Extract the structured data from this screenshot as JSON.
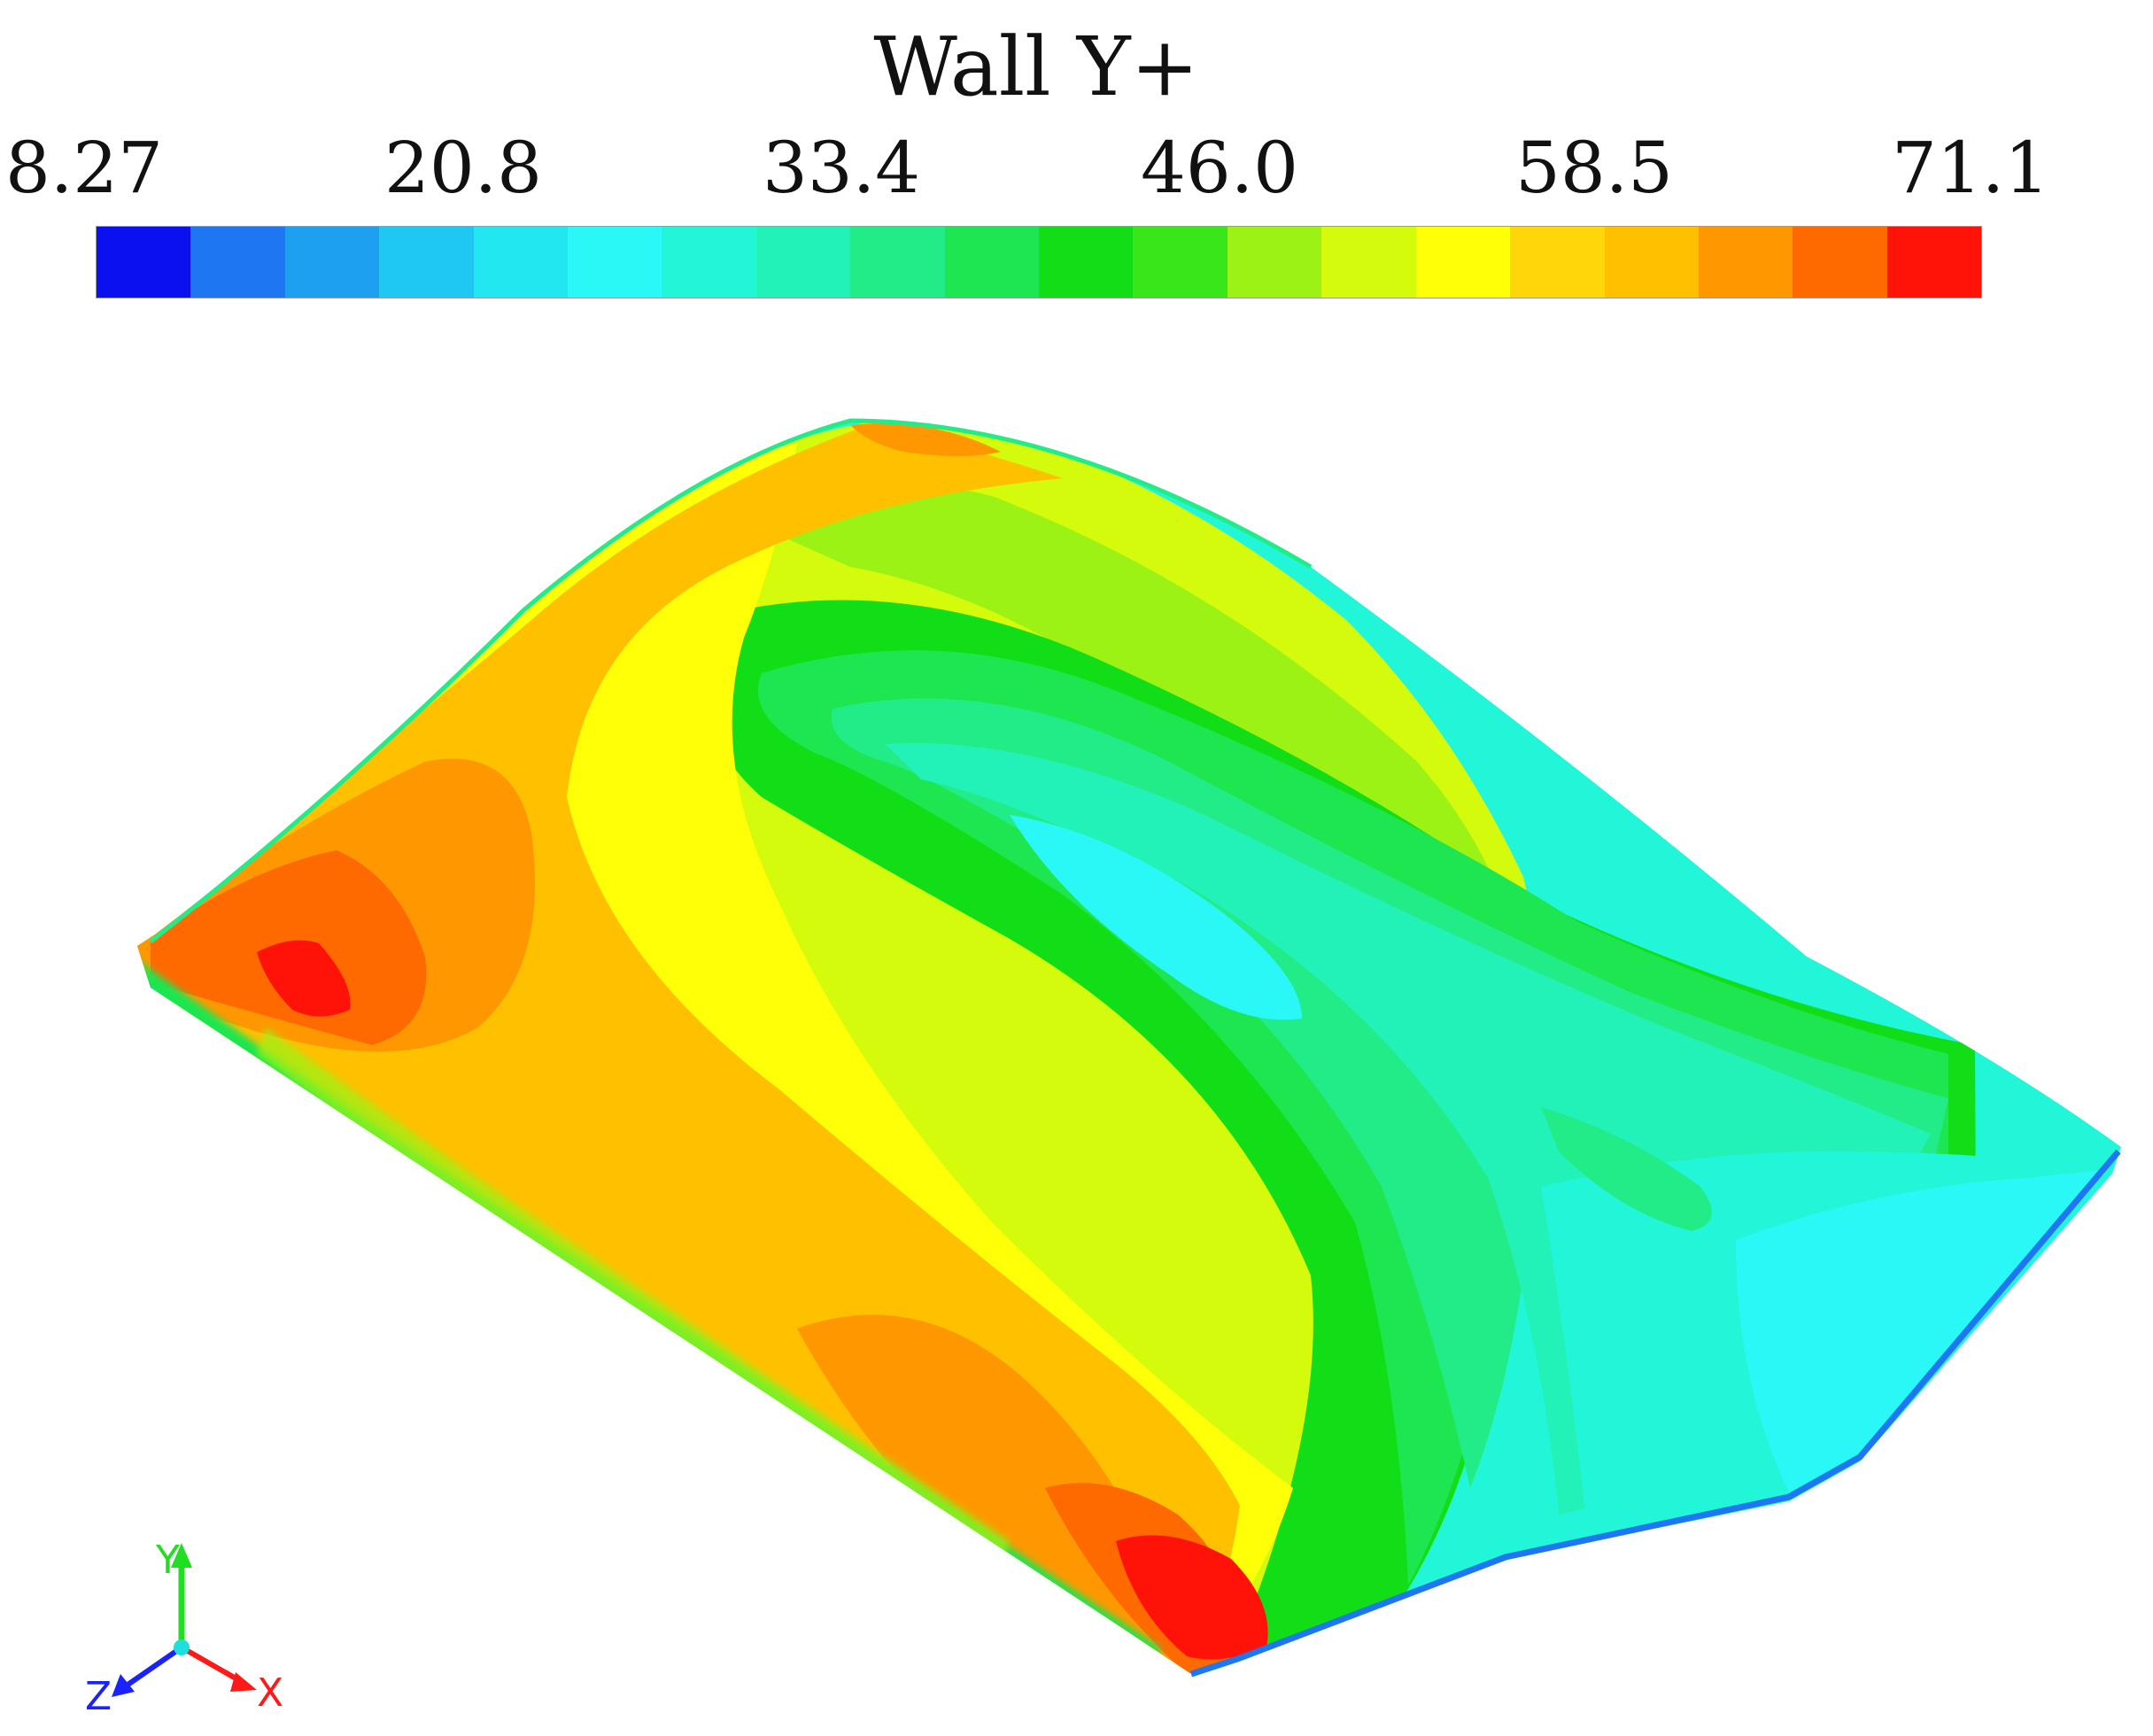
{
  "legend": {
    "title": "Wall Y+",
    "ticks": [
      "8.27",
      "20.8",
      "33.4",
      "46.0",
      "58.5",
      "71.1"
    ],
    "colors": [
      "#0a10f0",
      "#1e76f2",
      "#1ea0f0",
      "#1ec8f0",
      "#22e6f0",
      "#2af8f6",
      "#22f6d8",
      "#22f2b8",
      "#22ec88",
      "#1ee650",
      "#12de18",
      "#38e61a",
      "#9cf214",
      "#d4fa0c",
      "#ffff08",
      "#ffd60a",
      "#ffc000",
      "#ff9800",
      "#ff6a00",
      "#ff1208"
    ]
  },
  "view": {
    "surface": "wing",
    "palette": {
      "red": "#ff1208",
      "orange_dark": "#ff6a00",
      "orange": "#ff9800",
      "amber": "#ffc000",
      "yellow": "#ffff08",
      "yellow_green": "#d4fa0c",
      "lime": "#9cf214",
      "green": "#12de18",
      "green_light": "#1ee650",
      "mint": "#22ec88",
      "aqua_green": "#22f2b8",
      "aqua": "#22f6d8",
      "cyan": "#2af8f6",
      "cyan_blue": "#1ec8f0",
      "blue": "#1e76f2"
    }
  },
  "triad": {
    "x_label": "X",
    "y_label": "Y",
    "z_label": "Z",
    "x_color": "#ff1a1a",
    "y_color": "#22dd22",
    "z_color": "#1a22ff"
  }
}
